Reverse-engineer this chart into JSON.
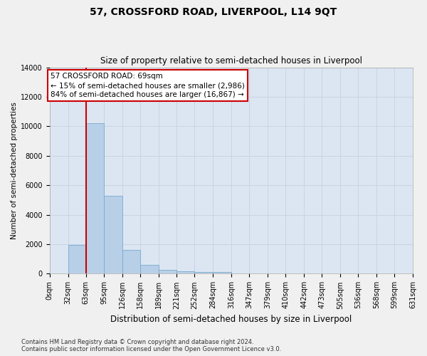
{
  "title": "57, CROSSFORD ROAD, LIVERPOOL, L14 9QT",
  "subtitle": "Size of property relative to semi-detached houses in Liverpool",
  "xlabel": "Distribution of semi-detached houses by size in Liverpool",
  "ylabel": "Number of semi-detached properties",
  "property_label": "57 CROSSFORD ROAD: 69sqm",
  "pct_smaller": 15,
  "n_smaller": 2986,
  "pct_larger": 84,
  "n_larger": 16867,
  "bin_edges": [
    0,
    32,
    63,
    95,
    126,
    158,
    189,
    221,
    252,
    284,
    316,
    347,
    379,
    410,
    442,
    473,
    505,
    536,
    568,
    599,
    631
  ],
  "bin_labels": [
    "0sqm",
    "32sqm",
    "63sqm",
    "95sqm",
    "126sqm",
    "158sqm",
    "189sqm",
    "221sqm",
    "252sqm",
    "284sqm",
    "316sqm",
    "347sqm",
    "379sqm",
    "410sqm",
    "442sqm",
    "473sqm",
    "505sqm",
    "536sqm",
    "568sqm",
    "599sqm",
    "631sqm"
  ],
  "counts": [
    0,
    1950,
    10200,
    5300,
    1600,
    600,
    270,
    180,
    130,
    100,
    0,
    0,
    0,
    0,
    0,
    0,
    0,
    0,
    0,
    0
  ],
  "bar_color": "#b8cfe8",
  "bar_edge_color": "#7aabcc",
  "vline_color": "#cc0000",
  "vline_x": 63,
  "ylim": [
    0,
    14000
  ],
  "yticks": [
    0,
    2000,
    4000,
    6000,
    8000,
    10000,
    12000,
    14000
  ],
  "grid_color": "#c8d4e4",
  "bg_color": "#dce6f2",
  "fig_bg_color": "#f0f0f0",
  "footer": "Contains HM Land Registry data © Crown copyright and database right 2024.\nContains public sector information licensed under the Open Government Licence v3.0.",
  "title_fontsize": 10,
  "subtitle_fontsize": 8.5,
  "xlabel_fontsize": 8.5,
  "ylabel_fontsize": 7.5,
  "tick_fontsize": 7,
  "footer_fontsize": 6,
  "ann_fontsize": 7.5
}
